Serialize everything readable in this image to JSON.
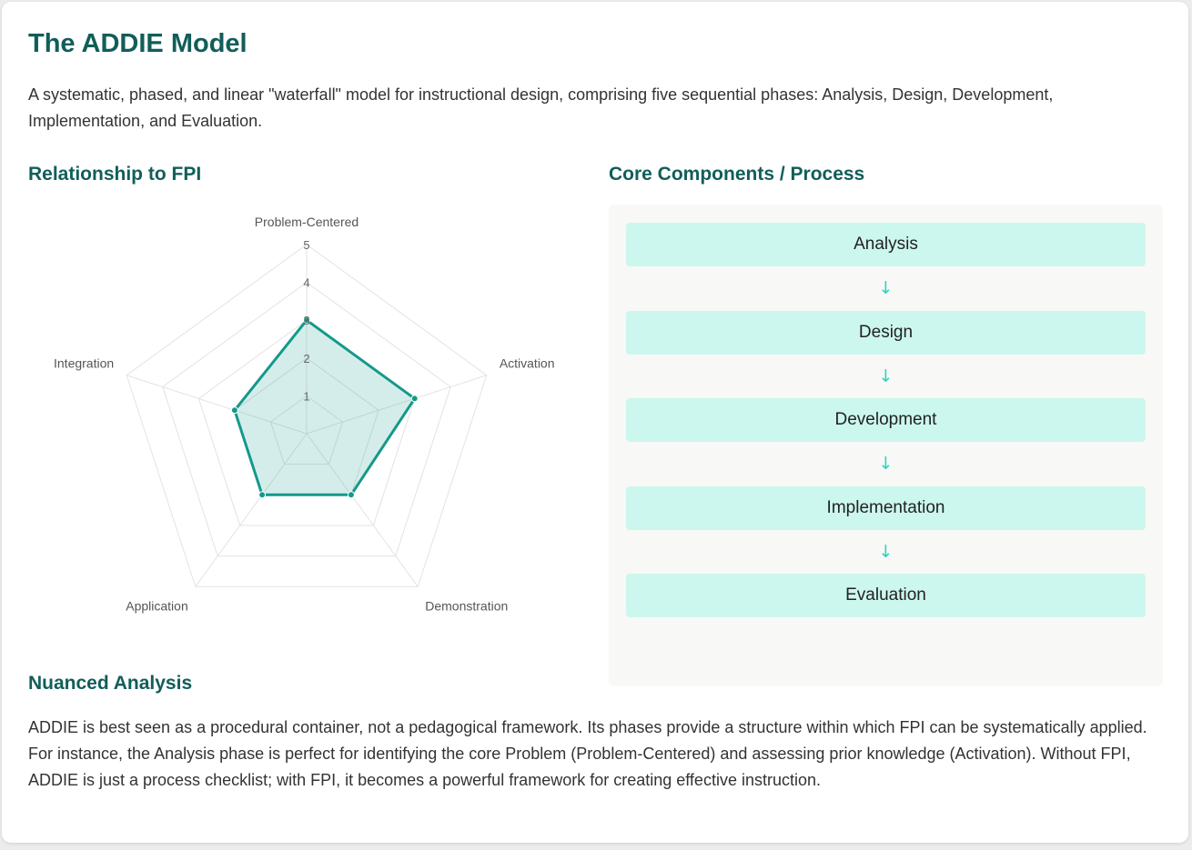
{
  "page": {
    "title": "The ADDIE Model",
    "description": "A systematic, phased, and linear \"waterfall\" model for instructional design, comprising five sequential phases: Analysis, Design, Development, Implementation, and Evaluation."
  },
  "relationship": {
    "heading": "Relationship to FPI"
  },
  "core": {
    "heading": "Core Components / Process",
    "steps": [
      "Analysis",
      "Design",
      "Development",
      "Implementation",
      "Evaluation"
    ],
    "arrow_icon": "arrow-down-icon",
    "arrow_glyph": "↓"
  },
  "nuanced": {
    "heading": "Nuanced Analysis",
    "text": "ADDIE is best seen as a procedural container, not a pedagogical framework. Its phases provide a structure within which FPI can be systematically applied. For instance, the Analysis phase is perfect for identifying the core Problem (Problem-Centered) and assessing prior knowledge (Activation). Without FPI, ADDIE is just a process checklist; with FPI, it becomes a powerful framework for creating effective instruction."
  },
  "colors": {
    "heading": "#115e59",
    "series_line": "#14998b",
    "series_fill": "rgba(20,153,139,0.18)",
    "step_bg": "#ccf7ee",
    "arrow": "#2dd4bf"
  },
  "chart_data": {
    "type": "radar",
    "axes": [
      "Problem-Centered",
      "Activation",
      "Demonstration",
      "Application",
      "Integration"
    ],
    "series": [
      {
        "values": [
          3,
          3,
          2,
          2,
          2
        ]
      }
    ],
    "rlim": [
      0,
      5
    ],
    "ticks": [
      1,
      2,
      3,
      4,
      5
    ],
    "grid": true,
    "legend": "none"
  }
}
